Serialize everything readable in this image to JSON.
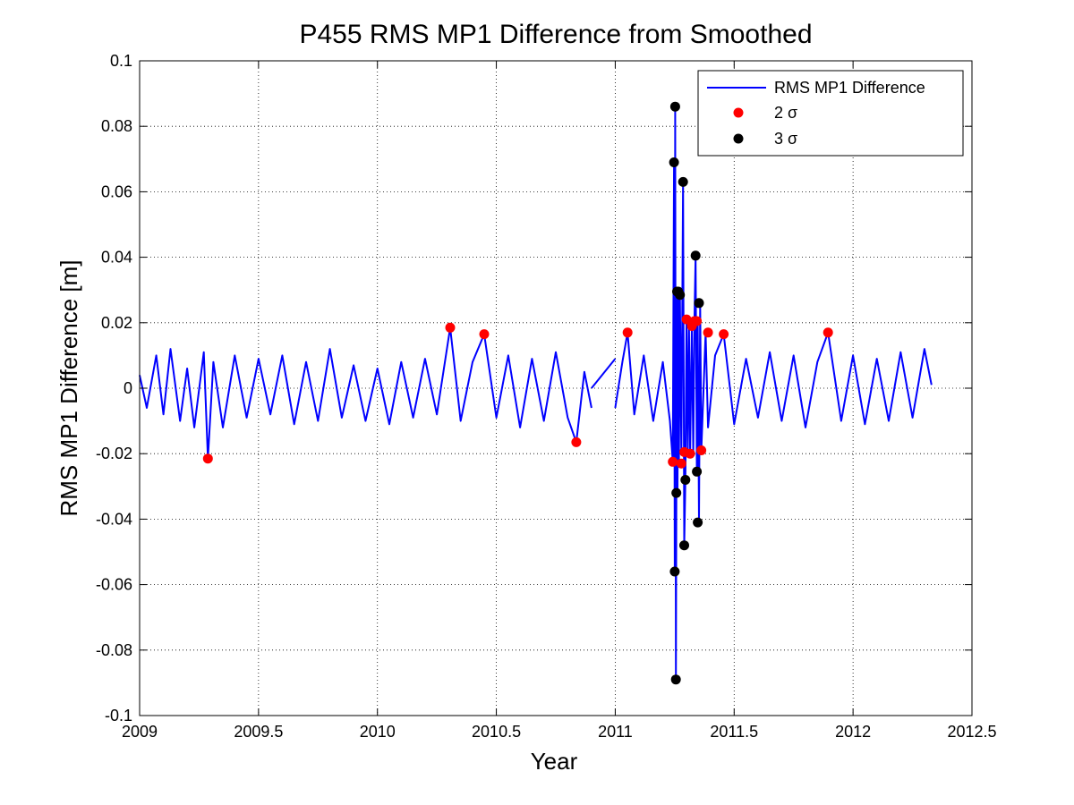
{
  "chart_data": {
    "type": "line",
    "title": "P455 RMS MP1 Difference from Smoothed",
    "xlabel": "Year",
    "ylabel": "RMS MP1 Difference [m]",
    "xlim": [
      2009,
      2012.5
    ],
    "ylim": [
      -0.1,
      0.1
    ],
    "xticks": [
      2009,
      2009.5,
      2010,
      2010.5,
      2011,
      2011.5,
      2012,
      2012.5
    ],
    "xtick_labels": [
      "2009",
      "2009.5",
      "2010",
      "2010.5",
      "2011",
      "2011.5",
      "2012",
      "2012.5"
    ],
    "yticks": [
      -0.1,
      -0.08,
      -0.06,
      -0.04,
      -0.02,
      0,
      0.02,
      0.04,
      0.06,
      0.08,
      0.1
    ],
    "ytick_labels": [
      "-0.1",
      "-0.08",
      "-0.06",
      "-0.04",
      "-0.02",
      "0",
      "0.02",
      "0.04",
      "0.06",
      "0.08",
      "0.1"
    ],
    "grid": true,
    "legend_position": "top-right",
    "legend": [
      "RMS MP1 Difference",
      "2 σ",
      "3 σ"
    ],
    "colors": {
      "line": "#0000ff",
      "sigma2": "#ff0000",
      "sigma3": "#000000"
    },
    "series": [
      {
        "name": "RMS MP1 Difference",
        "style": "line",
        "segments": [
          {
            "x": [
              2009.0,
              2009.03,
              2009.07,
              2009.1,
              2009.13,
              2009.17,
              2009.2,
              2009.23,
              2009.27,
              2009.287,
              2009.31,
              2009.35,
              2009.4,
              2009.45,
              2009.5,
              2009.55,
              2009.6,
              2009.65,
              2009.7,
              2009.75,
              2009.8,
              2009.85,
              2009.9,
              2009.95,
              2010.0,
              2010.05,
              2010.1,
              2010.15,
              2010.2,
              2010.25,
              2010.306,
              2010.35,
              2010.4,
              2010.449,
              2010.5,
              2010.55,
              2010.6,
              2010.65,
              2010.7,
              2010.75,
              2010.8,
              2010.836,
              2010.87,
              2010.9
            ],
            "y": [
              0.004,
              -0.006,
              0.01,
              -0.008,
              0.012,
              -0.01,
              0.006,
              -0.012,
              0.011,
              -0.0215,
              0.008,
              -0.012,
              0.01,
              -0.009,
              0.009,
              -0.008,
              0.01,
              -0.011,
              0.008,
              -0.01,
              0.012,
              -0.009,
              0.007,
              -0.01,
              0.006,
              -0.011,
              0.008,
              -0.009,
              0.009,
              -0.008,
              0.0185,
              -0.01,
              0.008,
              0.0165,
              -0.009,
              0.01,
              -0.012,
              0.009,
              -0.01,
              0.011,
              -0.009,
              -0.0165,
              0.005,
              -0.006
            ]
          },
          {
            "x": [
              2010.9,
              2011.0
            ],
            "y": [
              0.0,
              0.009
            ]
          },
          {
            "x": [
              2011.0,
              2011.03,
              2011.052,
              2011.08,
              2011.12,
              2011.16,
              2011.2,
              2011.23,
              2011.242,
              2011.247,
              2011.25,
              2011.252,
              2011.255,
              2011.257,
              2011.26,
              2011.262,
              2011.265,
              2011.268,
              2011.272,
              2011.278,
              2011.285,
              2011.29,
              2011.295,
              2011.3,
              2011.305,
              2011.31,
              2011.315,
              2011.322,
              2011.328,
              2011.333,
              2011.338,
              2011.343,
              2011.347,
              2011.352,
              2011.357,
              2011.362,
              2011.38,
              2011.39,
              2011.42,
              2011.456,
              2011.5,
              2011.55,
              2011.6,
              2011.65,
              2011.7,
              2011.75,
              2011.8,
              2011.85,
              2011.895,
              2011.95,
              2012.0,
              2012.05,
              2012.1,
              2012.15,
              2012.2,
              2012.25,
              2012.3,
              2012.33
            ],
            "y": [
              -0.006,
              0.008,
              0.017,
              -0.008,
              0.01,
              -0.01,
              0.008,
              -0.01,
              -0.0225,
              0.069,
              -0.056,
              0.086,
              -0.089,
              -0.032,
              0.03,
              -0.032,
              0.03,
              -0.023,
              0.028,
              -0.02,
              0.063,
              -0.048,
              -0.028,
              0.021,
              -0.02,
              0.02,
              -0.02,
              0.019,
              -0.02,
              0.0205,
              0.0405,
              -0.0255,
              0.0205,
              -0.041,
              0.026,
              -0.019,
              0.017,
              -0.012,
              0.01,
              0.0165,
              -0.011,
              0.009,
              -0.009,
              0.011,
              -0.01,
              0.01,
              -0.012,
              0.008,
              0.017,
              -0.01,
              0.01,
              -0.011,
              0.009,
              -0.01,
              0.011,
              -0.009,
              0.012,
              0.001
            ]
          }
        ]
      },
      {
        "name": "2 σ",
        "style": "markers",
        "x": [
          2009.287,
          2010.306,
          2010.449,
          2010.836,
          2011.052,
          2011.242,
          2011.278,
          2011.29,
          2011.3,
          2011.315,
          2011.322,
          2011.333,
          2011.343,
          2011.362,
          2011.39,
          2011.456,
          2011.895
        ],
        "y": [
          -0.0215,
          0.0185,
          0.0165,
          -0.0165,
          0.017,
          -0.0225,
          -0.023,
          -0.0195,
          0.021,
          -0.02,
          0.019,
          0.0205,
          0.0205,
          -0.019,
          0.017,
          0.0165,
          0.017
        ]
      },
      {
        "name": "3 σ",
        "style": "markers",
        "x": [
          2011.247,
          2011.25,
          2011.252,
          2011.255,
          2011.257,
          2011.26,
          2011.265,
          2011.272,
          2011.285,
          2011.29,
          2011.295,
          2011.338,
          2011.343,
          2011.347,
          2011.352
        ],
        "y": [
          0.069,
          -0.056,
          0.086,
          -0.089,
          -0.032,
          0.0295,
          0.0295,
          0.0285,
          0.063,
          -0.048,
          -0.028,
          0.0405,
          -0.0255,
          -0.041,
          0.026
        ]
      }
    ]
  }
}
